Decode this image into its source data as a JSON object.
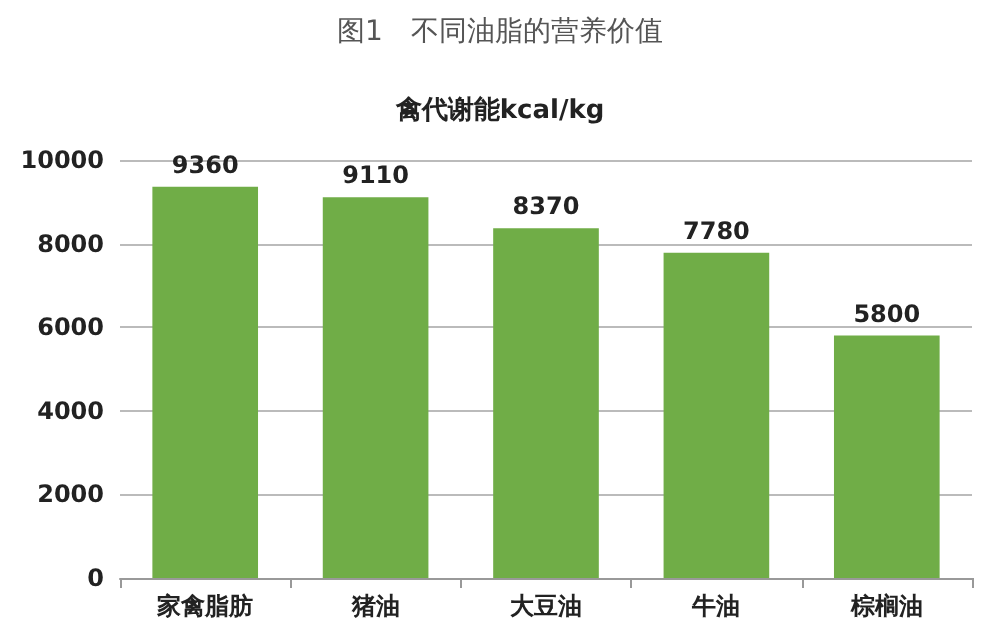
{
  "chart_data": {
    "type": "bar",
    "title": "图1　不同油脂的营养价值",
    "subtitle": "禽代谢能kcal/kg",
    "categories": [
      "家禽脂肪",
      "猪油",
      "大豆油",
      "牛油",
      "棕榈油"
    ],
    "values": [
      9360,
      9110,
      8370,
      7780,
      5800
    ],
    "color": "#70ad47",
    "ylim": [
      0,
      10000
    ],
    "yticks": [
      0,
      2000,
      4000,
      6000,
      8000,
      10000
    ],
    "grid": "y",
    "data_labels": true
  }
}
